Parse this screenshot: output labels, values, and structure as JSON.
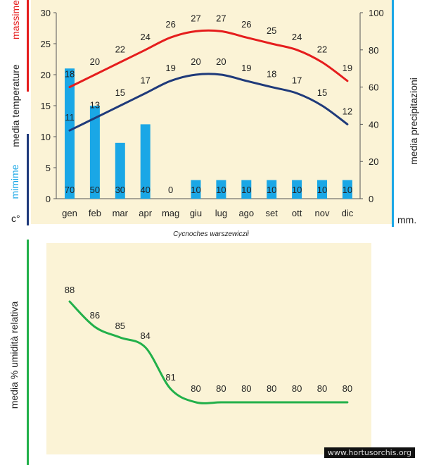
{
  "chart_data": [
    {
      "type": "bar+line",
      "title": "",
      "categories": [
        "gen",
        "feb",
        "mar",
        "apr",
        "mag",
        "giu",
        "lug",
        "ago",
        "set",
        "ott",
        "nov",
        "dic"
      ],
      "series": [
        {
          "name": "massime",
          "axis": "left",
          "kind": "line",
          "color": "#e51d1d",
          "values": [
            18,
            20,
            22,
            24,
            26,
            27,
            27,
            26,
            25,
            24,
            22,
            19
          ]
        },
        {
          "name": "minime",
          "axis": "left",
          "kind": "line",
          "color": "#1f3a7a",
          "values": [
            11,
            13,
            15,
            17,
            19,
            20,
            20,
            19,
            18,
            17,
            15,
            12
          ]
        },
        {
          "name": "media precipitazioni",
          "axis": "right",
          "kind": "bar",
          "color": "#1aa7e6",
          "values": [
            70,
            50,
            30,
            40,
            0,
            10,
            10,
            10,
            10,
            10,
            10,
            10
          ]
        }
      ],
      "left_axis": {
        "ticks": [
          "0",
          "5",
          "10",
          "15",
          "20",
          "25",
          "30"
        ],
        "ylim": [
          0,
          30
        ],
        "unit": "c°"
      },
      "right_axis": {
        "ticks": [
          "0",
          "20",
          "40",
          "60",
          "80",
          "100"
        ],
        "ylim": [
          0,
          100
        ],
        "unit": "mm."
      },
      "left_labels": {
        "top": "massime",
        "mid": "media  temperature",
        "bottom": "mimime"
      },
      "right_label": "media  precipitazioni"
    },
    {
      "type": "line",
      "categories": [
        "gen",
        "feb",
        "mar",
        "apr",
        "mag",
        "giu",
        "lug",
        "ago",
        "set",
        "ott",
        "nov",
        "dic"
      ],
      "series": [
        {
          "name": "media % umidità relativa",
          "color": "#22b04a",
          "values": [
            88,
            86,
            85,
            84,
            81,
            80,
            80,
            80,
            80,
            80,
            80,
            80
          ]
        }
      ],
      "ylabel": "media %  umidità relativa",
      "ylim": [
        78,
        90
      ]
    }
  ],
  "caption": "Cycnoches warszewiczii",
  "watermark": "www.hortusorchis.org",
  "colors": {
    "red": "#e51d1d",
    "navy": "#1f3a7a",
    "cyan": "#1aa7e6",
    "green": "#22b04a",
    "panel": "#fbf3d6"
  }
}
